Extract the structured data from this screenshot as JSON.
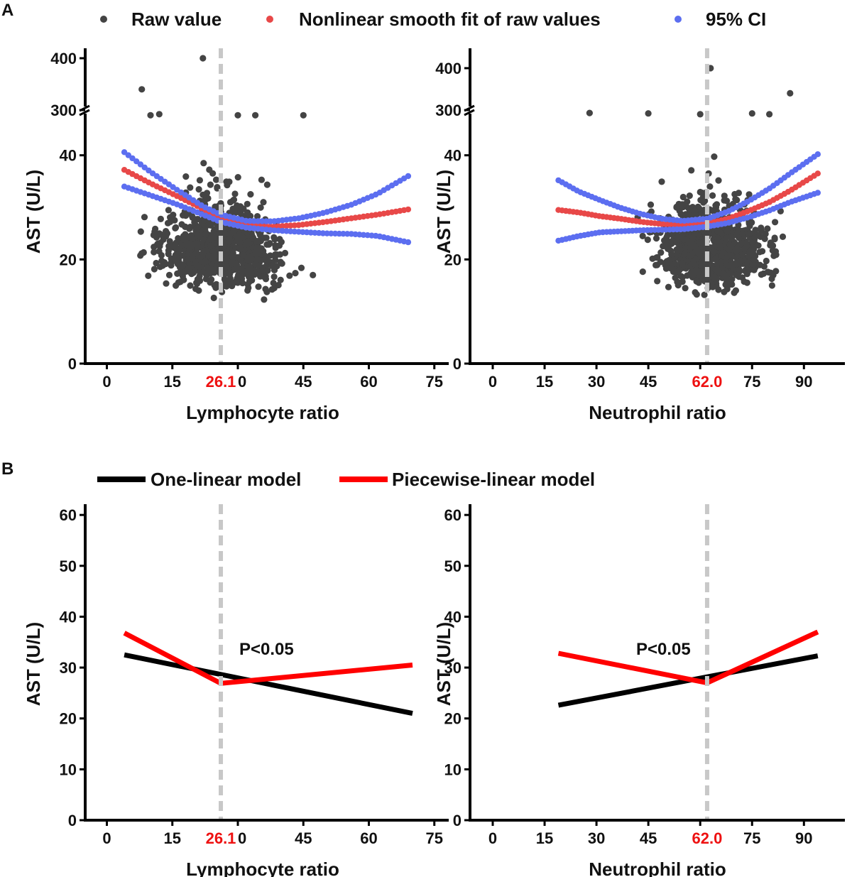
{
  "panel_labels": [
    "A",
    "B"
  ],
  "legend_a": {
    "items": [
      {
        "label": "Raw value",
        "color": "#444444"
      },
      {
        "label": "Nonlinear smooth fit of raw values",
        "color": "#e84848"
      },
      {
        "label": "95% CI",
        "color": "#5c6ef0"
      }
    ]
  },
  "legend_b": {
    "items": [
      {
        "label": "One-linear model",
        "color": "#000000"
      },
      {
        "label": "Piecewise-linear model",
        "color": "#ff0000"
      }
    ]
  },
  "chart_data": [
    {
      "id": "A-left",
      "type": "scatter",
      "xlabel": "Lymphocyte ratio",
      "ylabel": "AST (U/L)",
      "x_ticks": [
        0,
        15,
        30,
        45,
        60,
        75
      ],
      "xlim": [
        -5,
        77
      ],
      "y_ticks_lower": [
        0,
        20,
        40
      ],
      "y_ticks_upper": [
        300,
        400
      ],
      "y_axis_break": "between 40 and 300",
      "cutoff": 26.1,
      "cutoff_label": "26.1",
      "fit": {
        "x": [
          4,
          10,
          16,
          22,
          26.1,
          32,
          38,
          44,
          50,
          56,
          62,
          69
        ],
        "y": [
          37.2,
          34.6,
          32.2,
          29.7,
          27.8,
          26.6,
          26.3,
          26.6,
          27.2,
          27.9,
          28.6,
          29.6
        ]
      },
      "ci_upper": {
        "x": [
          4,
          10,
          16,
          22,
          26.1,
          32,
          38,
          44,
          50,
          56,
          62,
          69
        ],
        "y": [
          40.6,
          36.8,
          33.4,
          30.2,
          28.6,
          27.4,
          27.3,
          27.9,
          29.0,
          30.5,
          32.6,
          36.0
        ]
      },
      "ci_lower": {
        "x": [
          4,
          10,
          16,
          22,
          26.1,
          32,
          38,
          44,
          50,
          56,
          62,
          69
        ],
        "y": [
          34.0,
          32.3,
          30.6,
          28.6,
          27.2,
          26.1,
          25.6,
          25.3,
          25.0,
          24.9,
          24.5,
          23.3
        ]
      }
    },
    {
      "id": "A-right",
      "type": "scatter",
      "xlabel": "Neutrophil ratio",
      "ylabel": "AST (U/L)",
      "x_ticks": [
        0,
        15,
        30,
        45,
        60,
        75,
        90
      ],
      "xlim": [
        0,
        100
      ],
      "y_ticks_lower": [
        0,
        20,
        40
      ],
      "y_ticks_upper": [
        300,
        400
      ],
      "y_axis_break": "between 40 and 300",
      "cutoff": 62.0,
      "cutoff_label": "62.0",
      "fit": {
        "x": [
          19,
          25,
          31,
          37,
          43,
          49,
          55,
          62,
          68,
          74,
          80,
          86,
          94
        ],
        "y": [
          29.5,
          29.0,
          28.3,
          27.8,
          27.2,
          26.8,
          26.6,
          26.9,
          27.8,
          29.3,
          31.0,
          33.2,
          36.5
        ]
      },
      "ci_upper": {
        "x": [
          19,
          25,
          31,
          37,
          43,
          49,
          55,
          62,
          68,
          74,
          80,
          86,
          94
        ],
        "y": [
          35.2,
          33.0,
          31.4,
          29.9,
          28.7,
          27.8,
          27.4,
          27.8,
          29.2,
          31.2,
          33.6,
          36.5,
          40.2
        ]
      },
      "ci_lower": {
        "x": [
          19,
          25,
          31,
          37,
          43,
          49,
          55,
          62,
          68,
          74,
          80,
          86,
          94
        ],
        "y": [
          23.6,
          24.5,
          25.2,
          25.4,
          25.6,
          25.7,
          25.8,
          26.3,
          27.0,
          28.1,
          29.4,
          31.0,
          32.8
        ]
      }
    },
    {
      "id": "B-left",
      "type": "line",
      "xlabel": "Lymphocyte ratio",
      "ylabel": "AST (U/L)",
      "x_ticks": [
        0,
        15,
        30,
        45,
        60,
        75
      ],
      "xlim": [
        -5,
        77
      ],
      "y_ticks": [
        0,
        10,
        20,
        30,
        40,
        50,
        60
      ],
      "ylim": [
        0,
        61
      ],
      "cutoff": 26.1,
      "cutoff_label": "26.1",
      "annotation": "P<0.05",
      "series": [
        {
          "name": "One-linear model",
          "x": [
            4,
            70
          ],
          "y": [
            32.5,
            21.0
          ]
        },
        {
          "name": "Piecewise-linear model",
          "x": [
            4,
            26.1,
            70
          ],
          "y": [
            36.8,
            26.9,
            30.5
          ]
        }
      ]
    },
    {
      "id": "B-right",
      "type": "line",
      "xlabel": "Neutrophil ratio",
      "ylabel": "AST (U/L)",
      "x_ticks": [
        0,
        15,
        30,
        45,
        60,
        75,
        90
      ],
      "xlim": [
        0,
        100
      ],
      "y_ticks": [
        0,
        10,
        20,
        30,
        40,
        50,
        60
      ],
      "ylim": [
        0,
        61
      ],
      "cutoff": 62.0,
      "cutoff_label": "62.0",
      "annotation": "P<0.05",
      "series": [
        {
          "name": "One-linear model",
          "x": [
            19,
            94
          ],
          "y": [
            22.6,
            32.3
          ]
        },
        {
          "name": "Piecewise-linear model",
          "x": [
            19,
            62,
            94
          ],
          "y": [
            32.8,
            27.0,
            37.0
          ]
        }
      ]
    }
  ]
}
